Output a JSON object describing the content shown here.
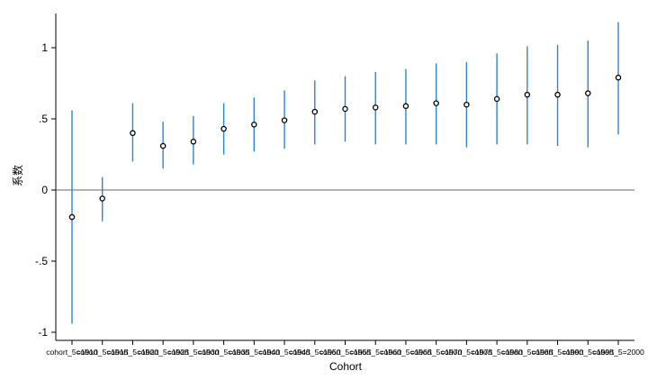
{
  "chart_data": {
    "type": "scatter",
    "xlabel": "Cohort",
    "ylabel": "系数",
    "ylim": [
      -1.05,
      1.25
    ],
    "yticks": [
      {
        "value": 1,
        "label": "1"
      },
      {
        "value": 0.5,
        "label": ".5"
      },
      {
        "value": 0,
        "label": "0"
      },
      {
        "value": -0.5,
        "label": "-.5"
      },
      {
        "value": -1,
        "label": "-1"
      }
    ],
    "reference_line": 0,
    "categories": [
      "cohort_5=1910",
      "cohort_5=1915",
      "cohort_5=1920",
      "cohort_5=1925",
      "cohort_5=1930",
      "cohort_5=1935",
      "cohort_5=1940",
      "cohort_5=1945",
      "cohort_5=1950",
      "cohort_5=1955",
      "cohort_5=1960",
      "cohort_5=1965",
      "cohort_5=1970",
      "cohort_5=1975",
      "cohort_5=1980",
      "cohort_5=1985",
      "cohort_5=1990",
      "cohort_5=1995",
      "cohort_5=2000"
    ],
    "category_labels_rendered": [
      "cohort_5=1910",
      "cohort_5=1915",
      "cohort_5=1920",
      "cohort_5=1925",
      "cohort_5=1930",
      "cohort_5=1935",
      "cohort_5=1940",
      "cohort_5=1945",
      "cohort_5=1950",
      "cohort_5=1955",
      "cohort_5=1960",
      "cohort_5=1965",
      "cohort_5=1970",
      "cohort_5=1975",
      "cohort_5=1980",
      "cohort_5=1985",
      "cohort_5=1990",
      "cohort_5=1995",
      "cohort_5=2000"
    ],
    "series": [
      {
        "values": [
          -0.19,
          -0.06,
          0.4,
          0.31,
          0.34,
          0.43,
          0.46,
          0.49,
          0.55,
          0.57,
          0.58,
          0.59,
          0.61,
          0.6,
          0.64,
          0.67,
          0.67,
          0.68,
          0.79
        ],
        "ci_low": [
          -0.94,
          -0.22,
          0.2,
          0.15,
          0.18,
          0.25,
          0.27,
          0.29,
          0.32,
          0.34,
          0.32,
          0.32,
          0.32,
          0.3,
          0.32,
          0.32,
          0.31,
          0.3,
          0.39
        ],
        "ci_high": [
          0.56,
          0.09,
          0.61,
          0.48,
          0.52,
          0.61,
          0.65,
          0.7,
          0.77,
          0.8,
          0.83,
          0.85,
          0.89,
          0.9,
          0.96,
          1.01,
          1.02,
          1.05,
          1.18
        ]
      }
    ],
    "colors": {
      "ci": "#2a86d5",
      "marker_fill": "#ffffff",
      "marker_stroke": "#000000",
      "axes": "#000000"
    },
    "grid": false,
    "legend": "none"
  }
}
